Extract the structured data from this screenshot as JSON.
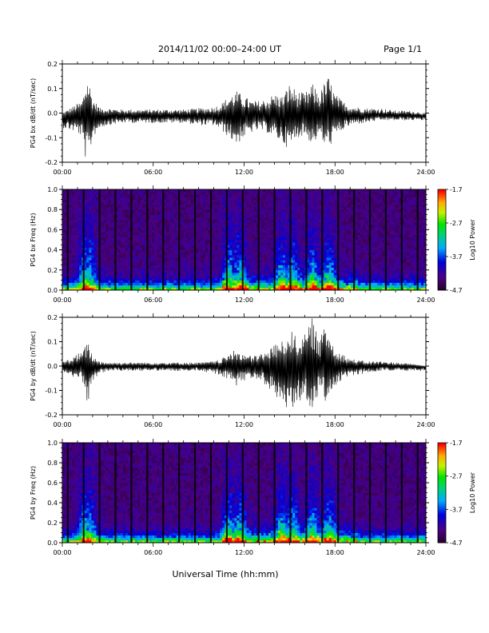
{
  "header": {
    "title": "2014/11/02  00:00–24:00 UT",
    "page": "Page 1/1"
  },
  "xlabel": "Universal Time (hh:mm)",
  "chart_data": [
    {
      "type": "line",
      "ylabel": "PG4 bx dB/dt (nT/sec)",
      "xlim": [
        "00:00",
        "24:00"
      ],
      "ylim": [
        -0.2,
        0.2
      ],
      "x_ticks": [
        "00:00",
        "06:00",
        "12:00",
        "18:00",
        "24:00"
      ],
      "y_ticks": [
        "-0.2",
        "-0.1",
        "0.0",
        "0.1",
        "0.2"
      ],
      "envelope": {
        "x_hours": [
          0.0,
          0.5,
          1.0,
          1.3,
          1.5,
          1.7,
          2.0,
          2.5,
          3.0,
          4.0,
          5.0,
          6.0,
          7.0,
          8.0,
          9.0,
          10.0,
          10.5,
          11.0,
          11.5,
          12.0,
          12.5,
          13.0,
          13.5,
          14.0,
          14.5,
          15.0,
          15.5,
          16.0,
          16.5,
          17.0,
          17.4,
          17.6,
          18.0,
          18.5,
          19.0,
          20.0,
          21.0,
          22.0,
          23.0,
          24.0
        ],
        "upper": [
          0.0,
          0.02,
          0.04,
          0.05,
          0.12,
          0.15,
          0.06,
          0.02,
          0.02,
          0.015,
          0.015,
          0.015,
          0.015,
          0.015,
          0.02,
          0.025,
          0.04,
          0.07,
          0.09,
          0.07,
          0.05,
          0.05,
          0.06,
          0.08,
          0.07,
          0.12,
          0.09,
          0.08,
          0.12,
          0.08,
          0.14,
          0.15,
          0.08,
          0.05,
          0.03,
          0.02,
          0.02,
          0.01,
          0.01,
          0.0
        ],
        "lower": [
          -0.06,
          -0.07,
          -0.08,
          -0.1,
          -0.18,
          -0.21,
          -0.1,
          -0.06,
          -0.05,
          -0.04,
          -0.04,
          -0.04,
          -0.04,
          -0.04,
          -0.05,
          -0.05,
          -0.07,
          -0.1,
          -0.13,
          -0.1,
          -0.08,
          -0.07,
          -0.08,
          -0.1,
          -0.12,
          -0.15,
          -0.1,
          -0.09,
          -0.13,
          -0.09,
          -0.15,
          -0.14,
          -0.1,
          -0.07,
          -0.05,
          -0.04,
          -0.03,
          -0.03,
          -0.03,
          -0.03
        ],
        "baseline": -0.01
      }
    },
    {
      "type": "heatmap",
      "ylabel": "PG4 bx Freq (Hz)",
      "xlim": [
        "00:00",
        "24:00"
      ],
      "ylim": [
        0.0,
        1.0
      ],
      "x_ticks": [
        "00:00",
        "06:00",
        "12:00",
        "18:00",
        "24:00"
      ],
      "y_ticks": [
        "0.0",
        "0.2",
        "0.4",
        "0.6",
        "0.8",
        "1.0"
      ],
      "colorbar": {
        "label": "Log10 Power",
        "min": -4.7,
        "max": -1.7,
        "ticks": [
          "-1.7",
          "-2.7",
          "-3.7",
          "-4.7"
        ]
      },
      "bursts_hours": [
        1.5,
        1.8,
        11.0,
        11.7,
        14.5,
        15.2,
        16.5,
        17.6
      ]
    },
    {
      "type": "line",
      "ylabel": "PG4 by dB/dt (nT/sec)",
      "xlim": [
        "00:00",
        "24:00"
      ],
      "ylim": [
        -0.2,
        0.2
      ],
      "x_ticks": [
        "00:00",
        "06:00",
        "12:00",
        "18:00",
        "24:00"
      ],
      "y_ticks": [
        "-0.2",
        "-0.1",
        "0.0",
        "0.1",
        "0.2"
      ],
      "envelope": {
        "x_hours": [
          0.0,
          0.5,
          1.0,
          1.3,
          1.5,
          1.7,
          2.0,
          2.5,
          3.0,
          4.0,
          5.0,
          6.0,
          7.0,
          8.0,
          9.0,
          10.0,
          10.5,
          11.0,
          11.5,
          12.0,
          12.5,
          13.0,
          13.5,
          14.0,
          14.5,
          15.0,
          15.5,
          16.0,
          16.5,
          17.0,
          17.4,
          17.6,
          18.0,
          18.5,
          19.0,
          20.0,
          21.0,
          22.0,
          23.0,
          24.0
        ],
        "upper": [
          0.02,
          0.03,
          0.05,
          0.06,
          0.08,
          0.1,
          0.04,
          0.02,
          0.015,
          0.015,
          0.015,
          0.015,
          0.015,
          0.015,
          0.015,
          0.02,
          0.03,
          0.05,
          0.07,
          0.05,
          0.04,
          0.05,
          0.06,
          0.09,
          0.1,
          0.15,
          0.12,
          0.13,
          0.2,
          0.1,
          0.2,
          0.14,
          0.08,
          0.05,
          0.03,
          0.02,
          0.02,
          0.015,
          0.01,
          0.0
        ],
        "lower": [
          -0.03,
          -0.04,
          -0.05,
          -0.06,
          -0.13,
          -0.16,
          -0.06,
          -0.03,
          -0.02,
          -0.02,
          -0.02,
          -0.02,
          -0.02,
          -0.02,
          -0.02,
          -0.03,
          -0.04,
          -0.06,
          -0.08,
          -0.06,
          -0.05,
          -0.06,
          -0.08,
          -0.12,
          -0.15,
          -0.2,
          -0.15,
          -0.14,
          -0.19,
          -0.1,
          -0.15,
          -0.13,
          -0.09,
          -0.06,
          -0.04,
          -0.03,
          -0.02,
          -0.02,
          -0.02,
          -0.02
        ],
        "baseline": 0.0
      }
    },
    {
      "type": "heatmap",
      "ylabel": "PG4 by Freq (Hz)",
      "xlim": [
        "00:00",
        "24:00"
      ],
      "ylim": [
        0.0,
        1.0
      ],
      "x_ticks": [
        "00:00",
        "06:00",
        "12:00",
        "18:00",
        "24:00"
      ],
      "y_ticks": [
        "0.0",
        "0.2",
        "0.4",
        "0.6",
        "0.8",
        "1.0"
      ],
      "colorbar": {
        "label": "Log10 Power",
        "min": -4.7,
        "max": -1.7,
        "ticks": [
          "-1.7",
          "-2.7",
          "-3.7",
          "-4.7"
        ]
      },
      "bursts_hours": [
        1.5,
        1.8,
        11.0,
        11.7,
        14.5,
        15.2,
        16.5,
        17.6
      ]
    }
  ]
}
